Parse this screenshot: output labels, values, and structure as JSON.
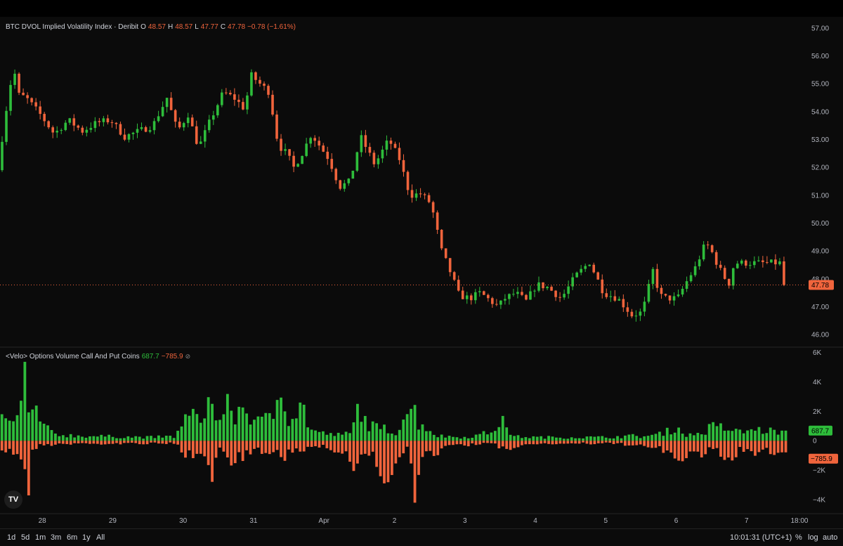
{
  "header": {
    "title": "BTC DVOL Implied Volatility Index · Deribit",
    "o_label": "O",
    "o_value": "48.57",
    "h_label": "H",
    "h_value": "48.57",
    "l_label": "L",
    "l_value": "47.77",
    "c_label": "C",
    "c_value": "47.78",
    "change": "−0.78 (−1.61%)"
  },
  "volume_header": {
    "title": "<Velo> Options Volume Call And Put Coins",
    "call_value": "687.7",
    "put_value": "−785.9",
    "icon": "hidden-eye-icon"
  },
  "bottom_bar": {
    "timeframes": [
      "1d",
      "5d",
      "1m",
      "3m",
      "6m",
      "1y",
      "All"
    ],
    "clock": "10:01:31 (UTC+1)",
    "percent_label": "%",
    "log_label": "log",
    "auto_label": "auto"
  },
  "logo": {
    "text": "TV",
    "icon": "tradingview-logo-icon"
  },
  "chart_data": [
    {
      "type": "candlestick",
      "title": "BTC DVOL Implied Volatility Index · Deribit",
      "x_ticks": [
        "28",
        "29",
        "30",
        "31",
        "Apr",
        "2",
        "3",
        "4",
        "5",
        "6",
        "7",
        "18:00"
      ],
      "x_tick_pos": [
        0.5,
        1.5,
        2.5,
        3.5,
        4.5,
        5.5,
        6.5,
        7.5,
        8.5,
        9.5,
        10.5,
        11.25
      ],
      "x_range": [
        -0.1,
        11.3
      ],
      "y_ticks": [
        46,
        47,
        48,
        49,
        50,
        51,
        52,
        53,
        54,
        55,
        56,
        57
      ],
      "ylim": [
        45.6,
        57.3
      ],
      "last_price": "47.78",
      "keys": [
        -0.1,
        0.0,
        0.12,
        0.2,
        0.3,
        0.5,
        0.7,
        0.9,
        1.1,
        1.3,
        1.5,
        1.7,
        1.9,
        2.1,
        2.3,
        2.45,
        2.6,
        2.75,
        2.9,
        3.1,
        3.25,
        3.4,
        3.5,
        3.62,
        3.75,
        3.88,
        4.0,
        4.1,
        4.2,
        4.35,
        4.6,
        4.75,
        4.9,
        5.05,
        5.25,
        5.45,
        5.6,
        5.75,
        5.9,
        6.05,
        6.2,
        6.3,
        6.45,
        6.6,
        6.75,
        6.9,
        7.0,
        7.1,
        7.25,
        7.4,
        7.55,
        7.7,
        7.9,
        8.1,
        8.3,
        8.5,
        8.7,
        8.9,
        9.05,
        9.2,
        9.3,
        9.4,
        9.55,
        9.7,
        9.8,
        9.95,
        10.05,
        10.1,
        10.2,
        10.3,
        10.35,
        10.45,
        10.55,
        10.65,
        10.75,
        10.85,
        10.95,
        11.05
      ],
      "key_vals": [
        51.9,
        53.8,
        55.6,
        54.6,
        54.5,
        53.9,
        53.2,
        53.7,
        53.3,
        53.6,
        53.7,
        53.1,
        53.3,
        53.5,
        54.5,
        53.3,
        53.9,
        52.7,
        53.6,
        54.7,
        54.5,
        54.1,
        55.3,
        55.0,
        54.7,
        52.8,
        52.5,
        52.0,
        52.4,
        53.2,
        52.3,
        51.3,
        51.5,
        53.1,
        52.1,
        53.0,
        52.3,
        51.0,
        51.05,
        50.7,
        49.0,
        48.4,
        47.4,
        47.3,
        47.5,
        47.2,
        47.0,
        47.3,
        47.5,
        47.2,
        47.8,
        47.7,
        47.3,
        48.1,
        48.6,
        47.5,
        47.3,
        46.7,
        46.8,
        48.3,
        47.4,
        47.3,
        47.3,
        48.0,
        48.4,
        49.3,
        48.9,
        48.6,
        48.1,
        47.78,
        48.57,
        48.57,
        48.57,
        48.57,
        48.57,
        48.57,
        48.57,
        48.57
      ],
      "series_up_color": "#2ebd3b",
      "series_down_color": "#f0643c"
    },
    {
      "type": "bar",
      "title": "<Velo> Options Volume Call And Put Coins",
      "y_ticks": [
        "6K",
        "4K",
        "2K",
        "0",
        "−2K",
        "−4K"
      ],
      "y_tick_vals": [
        6000,
        4000,
        2000,
        0,
        -2000,
        -4000
      ],
      "ylim": [
        -4800,
        6300
      ],
      "call_value": 687.7,
      "put_value": -785.9,
      "series": [
        {
          "name": "Call",
          "keys": [
            0.0,
            0.05,
            0.1,
            0.2,
            0.25,
            0.3,
            0.4,
            0.5,
            0.7,
            1.0,
            1.5,
            2.0,
            2.4,
            2.5,
            2.75,
            2.9,
            3.0,
            3.1,
            3.2,
            3.3,
            3.6,
            3.8,
            3.9,
            4.0,
            4.1,
            4.2,
            4.3,
            4.5,
            4.75,
            4.9,
            5.0,
            5.1,
            5.3,
            5.4,
            5.5,
            5.6,
            5.75,
            5.85,
            5.95,
            6.1,
            6.3,
            6.5,
            6.7,
            6.9,
            7.0,
            7.2,
            7.5,
            8.0,
            8.5,
            8.9,
            9.0,
            9.2,
            9.4,
            9.5,
            9.6,
            9.7,
            9.9,
            10.0,
            10.2,
            10.4,
            10.6,
            10.8,
            11.0
          ],
          "key_vals": [
            1500,
            1800,
            1000,
            2500,
            5000,
            1500,
            2500,
            1000,
            450,
            350,
            300,
            250,
            300,
            1500,
            1800,
            3000,
            800,
            3200,
            1200,
            2500,
            1200,
            2000,
            4800,
            1500,
            2000,
            2500,
            800,
            500,
            400,
            600,
            2800,
            1200,
            800,
            900,
            400,
            1500,
            2600,
            1200,
            1000,
            350,
            300,
            250,
            400,
            700,
            1500,
            300,
            250,
            250,
            250,
            350,
            300,
            400,
            700,
            1000,
            500,
            400,
            600,
            1000,
            900,
            600,
            800,
            700,
            680
          ]
        },
        {
          "name": "Put",
          "keys": [
            0.0,
            0.05,
            0.15,
            0.2,
            0.25,
            0.3,
            0.35,
            0.4,
            0.5,
            0.7,
            1.0,
            1.5,
            2.0,
            2.4,
            2.5,
            2.75,
            2.9,
            3.0,
            3.2,
            3.4,
            3.8,
            3.9,
            4.0,
            4.2,
            4.5,
            4.8,
            4.9,
            5.1,
            5.4,
            5.7,
            5.8,
            5.9,
            6.0,
            6.2,
            6.5,
            6.9,
            7.0,
            7.5,
            8.0,
            8.5,
            9.0,
            9.3,
            9.4,
            9.5,
            9.7,
            9.8,
            10.0,
            10.1,
            10.2,
            10.4,
            10.6,
            10.8,
            11.0
          ],
          "key_vals": [
            -600,
            -1100,
            -800,
            -2200,
            -1300,
            -3800,
            -900,
            -600,
            -300,
            -250,
            -200,
            -200,
            -200,
            -200,
            -1100,
            -700,
            -2300,
            -600,
            -1800,
            -900,
            -700,
            -1900,
            -800,
            -600,
            -300,
            -900,
            -1900,
            -800,
            -2500,
            -600,
            -3800,
            -1000,
            -1200,
            -400,
            -300,
            -200,
            -600,
            -200,
            -200,
            -200,
            -300,
            -700,
            -1000,
            -1400,
            -800,
            -1200,
            -700,
            -900,
            -1300,
            -700,
            -1000,
            -800,
            -780
          ]
        }
      ]
    }
  ]
}
